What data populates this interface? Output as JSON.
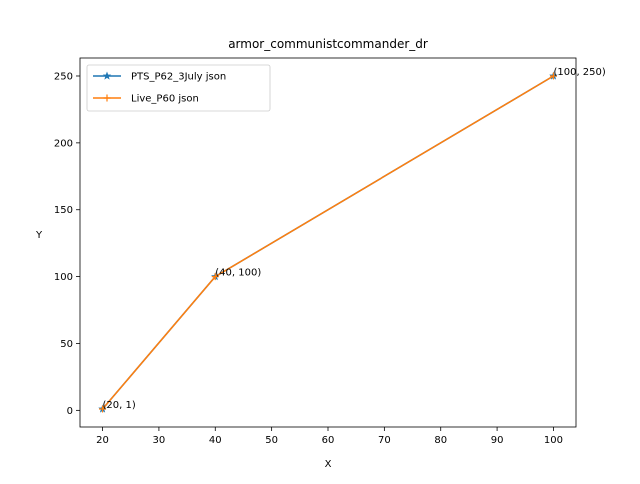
{
  "chart_data": {
    "type": "line",
    "title": "armor_communistcommander_dr",
    "xlabel": "X",
    "ylabel": "Y",
    "xlim": [
      16,
      104
    ],
    "ylim": [
      -12.45,
      263.45
    ],
    "xticks": [
      20,
      30,
      40,
      50,
      60,
      70,
      80,
      90,
      100
    ],
    "yticks": [
      0,
      50,
      100,
      150,
      200,
      250
    ],
    "grid": false,
    "legend": "top-left",
    "series": [
      {
        "name": "PTS_P62_3July json",
        "color": "#1f77b4",
        "marker": "star",
        "x": [
          20,
          40,
          100
        ],
        "y": [
          1,
          100,
          250
        ]
      },
      {
        "name": "Live_P60 json",
        "color": "#ff7f0e",
        "marker": "plus",
        "x": [
          20,
          40,
          100
        ],
        "y": [
          1,
          100,
          250
        ]
      }
    ],
    "annotations": [
      {
        "text": "(20, 1)",
        "x": 20,
        "y": 1
      },
      {
        "text": "(40, 100)",
        "x": 40,
        "y": 100
      },
      {
        "text": "(100, 250)",
        "x": 100,
        "y": 250
      }
    ]
  }
}
